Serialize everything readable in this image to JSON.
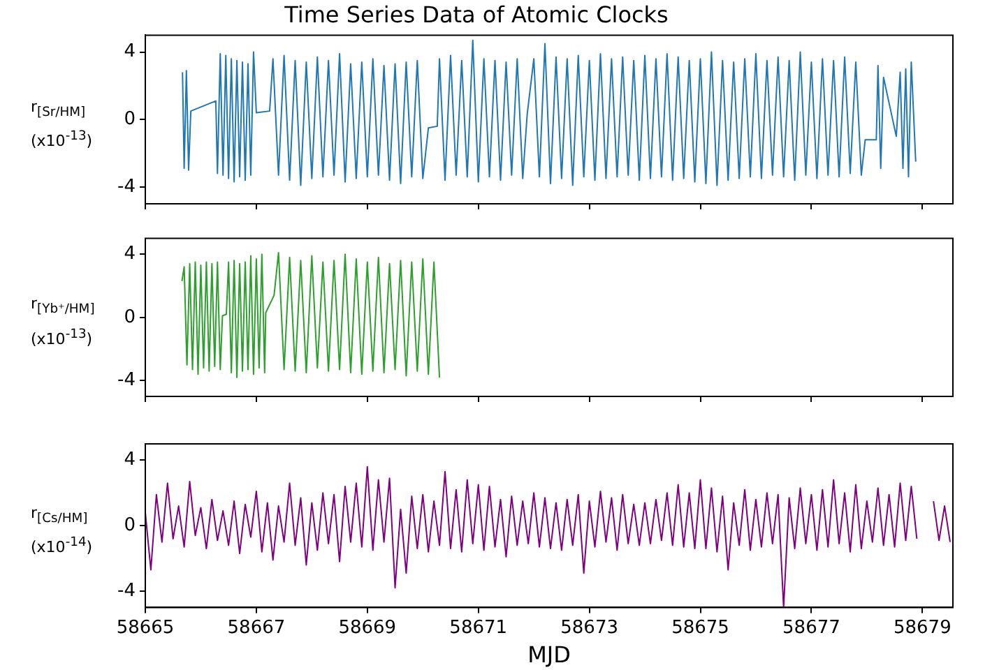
{
  "chart_data": [
    {
      "type": "line",
      "title": "Time Series Data of Atomic Clocks",
      "ylabel": "r$_{[Sr/HM]}$ (x10$^{-13}$)",
      "xlim": [
        58665,
        58679.55
      ],
      "xticks": [
        58665,
        58667,
        58669,
        58671,
        58673,
        58675,
        58677,
        58679
      ],
      "ylim": [
        -5,
        5
      ],
      "yticks": [
        -4,
        0,
        4
      ],
      "tick_labels": "y",
      "grid": false,
      "legend": false,
      "x": [
        58665.67,
        58665.7,
        58665.74,
        58665.78,
        58665.82,
        58666.27,
        58666.3,
        58666.35,
        58666.4,
        58666.45,
        58666.5,
        58666.55,
        58666.6,
        58666.65,
        58666.7,
        58666.75,
        58666.8,
        58666.85,
        58666.9,
        58666.95,
        58667.0,
        58667.24,
        58667.3,
        58667.4,
        58667.5,
        58667.6,
        58667.7,
        58667.8,
        58667.9,
        58668.0,
        58668.1,
        58668.2,
        58668.3,
        58668.4,
        58668.5,
        58668.6,
        58668.7,
        58668.8,
        58668.9,
        58669.0,
        58669.1,
        58669.2,
        58669.3,
        58669.4,
        58669.5,
        58669.6,
        58669.7,
        58669.8,
        58669.9,
        58670.0,
        58670.1,
        58670.26,
        58670.3,
        58670.4,
        58670.5,
        58670.6,
        58670.7,
        58670.8,
        58670.9,
        58671.0,
        58671.1,
        58671.2,
        58671.3,
        58671.4,
        58671.5,
        58671.6,
        58671.7,
        58671.8,
        58671.88,
        58672.0,
        58672.1,
        58672.2,
        58672.3,
        58672.4,
        58672.5,
        58672.6,
        58672.7,
        58672.8,
        58672.9,
        58673.0,
        58673.1,
        58673.2,
        58673.3,
        58673.4,
        58673.5,
        58673.6,
        58673.7,
        58673.8,
        58673.9,
        58674.0,
        58674.1,
        58674.2,
        58674.3,
        58674.4,
        58674.5,
        58674.6,
        58674.7,
        58674.8,
        58674.9,
        58675.0,
        58675.1,
        58675.2,
        58675.3,
        58675.4,
        58675.5,
        58675.6,
        58675.7,
        58675.8,
        58675.9,
        58676.0,
        58676.1,
        58676.2,
        58676.3,
        58676.4,
        58676.5,
        58676.6,
        58676.7,
        58676.8,
        58676.9,
        58677.0,
        58677.1,
        58677.2,
        58677.3,
        58677.4,
        58677.5,
        58677.6,
        58677.7,
        58677.8,
        58677.9,
        58677.97,
        58678.17,
        58678.2,
        58678.25,
        58678.3,
        58678.53,
        58678.6,
        58678.65,
        58678.7,
        58678.75,
        58678.8,
        58678.88
      ],
      "series": [
        {
          "color": "#1f77b4",
          "values": [
            2.8,
            -2.9,
            2.9,
            -3.0,
            0.5,
            1.1,
            -3.2,
            3.9,
            -3.3,
            3.8,
            -3.5,
            3.6,
            -3.7,
            3.5,
            -3.4,
            3.4,
            -3.6,
            3.3,
            -3.3,
            4.0,
            0.4,
            0.5,
            3.6,
            -3.3,
            3.8,
            -3.6,
            3.5,
            -3.9,
            3.4,
            -3.5,
            3.7,
            -3.4,
            3.5,
            -3.3,
            3.9,
            -3.7,
            3.3,
            -3.5,
            3.4,
            -3.4,
            3.6,
            -3.3,
            3.2,
            -3.6,
            3.3,
            -3.8,
            3.4,
            -3.4,
            3.5,
            -3.5,
            -0.5,
            -0.4,
            3.6,
            -3.6,
            3.8,
            -3.3,
            3.5,
            -3.4,
            4.7,
            -3.7,
            3.6,
            -3.4,
            3.5,
            -3.6,
            3.4,
            -3.3,
            3.6,
            -3.5,
            0.3,
            3.6,
            -3.4,
            4.5,
            -3.8,
            3.7,
            -3.5,
            3.6,
            -3.9,
            3.8,
            -3.4,
            3.5,
            -3.6,
            3.9,
            -3.5,
            3.6,
            -3.4,
            3.7,
            -3.3,
            3.5,
            -3.6,
            3.8,
            -3.5,
            3.6,
            -3.4,
            3.9,
            -3.6,
            3.7,
            -3.5,
            3.5,
            -3.7,
            3.6,
            -3.8,
            4.0,
            -3.9,
            3.5,
            -3.6,
            3.4,
            -3.5,
            3.6,
            -3.4,
            3.9,
            -3.5,
            3.5,
            -3.3,
            3.7,
            -3.4,
            3.5,
            -3.6,
            4.0,
            -3.3,
            3.4,
            -3.5,
            3.6,
            -3.3,
            3.5,
            -3.4,
            3.7,
            -3.2,
            3.4,
            -3.3,
            -1.2,
            -1.2,
            3.2,
            -2.9,
            2.5,
            -1.0,
            2.8,
            -2.9,
            3.0,
            -3.4,
            3.4,
            -2.5
          ]
        }
      ]
    },
    {
      "type": "line",
      "ylabel": "r$_{[Yb⁺/HM]}$ (x10$^{-13}$)",
      "xlim": [
        58665,
        58679.55
      ],
      "xticks": [
        58665,
        58667,
        58669,
        58671,
        58673,
        58675,
        58677,
        58679
      ],
      "ylim": [
        -5,
        5
      ],
      "yticks": [
        -4,
        0,
        4
      ],
      "tick_labels": "y",
      "grid": false,
      "legend": false,
      "x": [
        58665.66,
        58665.7,
        58665.75,
        58665.8,
        58665.85,
        58665.9,
        58665.95,
        58666.0,
        58666.05,
        58666.1,
        58666.15,
        58666.2,
        58666.25,
        58666.3,
        58666.35,
        58666.39,
        58666.46,
        58666.5,
        58666.55,
        58666.6,
        58666.65,
        58666.7,
        58666.75,
        58666.8,
        58666.85,
        58666.9,
        58666.95,
        58667.0,
        58667.05,
        58667.1,
        58667.15,
        58667.17,
        58667.32,
        58667.4,
        58667.5,
        58667.6,
        58667.7,
        58667.8,
        58667.9,
        58668.0,
        58668.1,
        58668.2,
        58668.3,
        58668.4,
        58668.5,
        58668.6,
        58668.7,
        58668.8,
        58668.9,
        58669.0,
        58669.1,
        58669.2,
        58669.3,
        58669.4,
        58669.5,
        58669.6,
        58669.7,
        58669.8,
        58669.9,
        58670.0,
        58670.1,
        58670.2,
        58670.3
      ],
      "series": [
        {
          "color": "#2ca02c",
          "values": [
            2.3,
            3.2,
            -3.0,
            3.4,
            -3.3,
            3.5,
            -3.6,
            3.3,
            -3.2,
            3.5,
            -3.4,
            3.4,
            -3.1,
            3.5,
            -3.3,
            0.1,
            0.2,
            3.5,
            -3.5,
            3.6,
            -3.8,
            3.4,
            -3.4,
            3.5,
            -3.3,
            3.9,
            -3.6,
            3.7,
            -3.2,
            4.0,
            -3.5,
            0.3,
            1.4,
            4.1,
            -3.3,
            3.8,
            -3.4,
            3.6,
            -3.5,
            3.9,
            -3.2,
            3.5,
            -3.4,
            3.6,
            -3.3,
            4.0,
            -3.5,
            3.7,
            -3.6,
            3.5,
            -3.4,
            3.8,
            -3.5,
            3.4,
            -3.3,
            3.6,
            -3.7,
            3.5,
            -3.4,
            3.7,
            -3.6,
            3.5,
            -3.8
          ]
        }
      ]
    },
    {
      "type": "line",
      "xlabel": "MJD",
      "ylabel": "r$_{[Cs/HM]}$ (x10$^{-14}$)",
      "xlim": [
        58665,
        58679.55
      ],
      "xticks": [
        58665,
        58667,
        58669,
        58671,
        58673,
        58675,
        58677,
        58679
      ],
      "ylim": [
        -5,
        5
      ],
      "yticks": [
        -4,
        0,
        4
      ],
      "grid": false,
      "legend": false,
      "x": [
        58665.0,
        58665.1,
        58665.2,
        58665.3,
        58665.4,
        58665.5,
        58665.6,
        58665.7,
        58665.8,
        58665.9,
        58666.0,
        58666.1,
        58666.2,
        58666.3,
        58666.4,
        58666.5,
        58666.6,
        58666.7,
        58666.8,
        58666.9,
        58667.0,
        58667.1,
        58667.2,
        58667.3,
        58667.4,
        58667.5,
        58667.6,
        58667.7,
        58667.8,
        58667.9,
        58668.0,
        58668.1,
        58668.2,
        58668.3,
        58668.4,
        58668.5,
        58668.6,
        58668.7,
        58668.8,
        58668.9,
        58669.0,
        58669.1,
        58669.2,
        58669.3,
        58669.4,
        58669.5,
        58669.6,
        58669.7,
        58669.8,
        58669.9,
        58670.0,
        58670.1,
        58670.2,
        58670.3,
        58670.4,
        58670.5,
        58670.6,
        58670.7,
        58670.8,
        58670.9,
        58671.0,
        58671.1,
        58671.2,
        58671.3,
        58671.4,
        58671.5,
        58671.6,
        58671.7,
        58671.8,
        58671.9,
        58672.0,
        58672.1,
        58672.2,
        58672.3,
        58672.4,
        58672.5,
        58672.6,
        58672.7,
        58672.8,
        58672.9,
        58673.0,
        58673.1,
        58673.2,
        58673.3,
        58673.4,
        58673.5,
        58673.6,
        58673.7,
        58673.8,
        58673.9,
        58674.0,
        58674.1,
        58674.2,
        58674.3,
        58674.4,
        58674.5,
        58674.6,
        58674.7,
        58674.8,
        58674.9,
        58675.0,
        58675.1,
        58675.2,
        58675.3,
        58675.4,
        58675.5,
        58675.6,
        58675.7,
        58675.8,
        58675.9,
        58676.0,
        58676.1,
        58676.2,
        58676.3,
        58676.4,
        58676.5,
        58676.6,
        58676.7,
        58676.8,
        58676.9,
        58677.0,
        58677.1,
        58677.2,
        58677.3,
        58677.4,
        58677.5,
        58677.6,
        58677.7,
        58677.8,
        58677.9,
        58678.0,
        58678.1,
        58678.2,
        58678.3,
        58678.4,
        58678.5,
        58678.6,
        58678.7,
        58678.8,
        58678.9,
        58679.0,
        58679.2,
        58679.3,
        58679.4,
        58679.5
      ],
      "series": [
        {
          "color": "#800080",
          "values": [
            0.8,
            -2.7,
            1.9,
            -1.0,
            2.6,
            -0.8,
            1.2,
            -1.3,
            2.7,
            -0.6,
            1.1,
            -1.4,
            1.6,
            -0.9,
            0.9,
            -1.2,
            1.5,
            -1.7,
            1.3,
            -0.7,
            2.1,
            -1.6,
            1.4,
            -2.1,
            1.2,
            -1.0,
            2.6,
            -1.2,
            1.7,
            -2.4,
            1.4,
            -1.5,
            2.0,
            -1.1,
            1.9,
            -2.2,
            2.4,
            -1.0,
            2.6,
            -1.3,
            3.6,
            -1.5,
            2.8,
            -1.0,
            2.9,
            -3.8,
            1.0,
            -2.9,
            1.8,
            -1.4,
            1.9,
            -1.6,
            1.5,
            -1.2,
            3.3,
            -1.4,
            2.2,
            -1.6,
            2.8,
            -1.1,
            2.5,
            -1.5,
            2.4,
            -1.3,
            1.6,
            -1.9,
            1.8,
            -1.2,
            1.5,
            -1.1,
            2.0,
            -1.3,
            1.7,
            -1.4,
            1.4,
            -1.5,
            1.6,
            -1.2,
            1.9,
            -2.9,
            1.5,
            -1.3,
            2.1,
            -1.0,
            1.7,
            -1.5,
            1.9,
            -1.1,
            1.3,
            -1.2,
            1.4,
            -1.1,
            1.6,
            -0.9,
            2.0,
            -1.2,
            2.5,
            -1.3,
            2.0,
            -1.4,
            2.8,
            -1.4,
            2.3,
            -1.6,
            1.8,
            -2.7,
            1.4,
            -1.2,
            2.2,
            -1.5,
            1.6,
            -1.3,
            2.0,
            -1.1,
            1.9,
            -5.0,
            1.7,
            -1.4,
            2.3,
            -1.1,
            1.9,
            -1.5,
            2.2,
            -1.3,
            2.8,
            -1.1,
            2.0,
            -1.6,
            2.5,
            -1.4,
            1.5,
            -1.0,
            2.3,
            -1.2,
            1.9,
            -1.3,
            2.6,
            -0.9,
            2.4,
            -0.8,
            null,
            1.5,
            -0.9,
            1.2,
            -1.0
          ]
        }
      ]
    }
  ]
}
